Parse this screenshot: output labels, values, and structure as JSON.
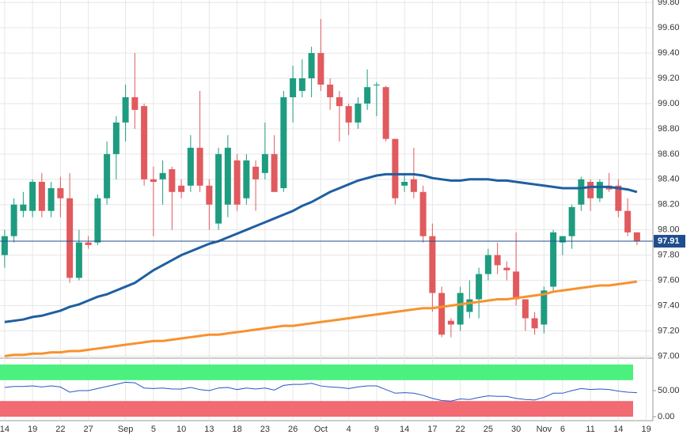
{
  "chart_data": [
    {
      "type": "candlestick",
      "categories": [
        "14",
        null,
        null,
        "19",
        null,
        null,
        "22",
        null,
        null,
        "27",
        null,
        null,
        null,
        "Sep",
        null,
        null,
        "5",
        null,
        null,
        "10",
        null,
        null,
        "13",
        null,
        null,
        "18",
        null,
        null,
        "23",
        null,
        null,
        "26",
        null,
        null,
        "Oct",
        null,
        null,
        "4",
        null,
        null,
        "9",
        null,
        null,
        "14",
        null,
        null,
        "17",
        null,
        null,
        "22",
        null,
        null,
        "25",
        null,
        null,
        "30",
        null,
        null,
        "Nov",
        null,
        "6",
        null,
        null,
        "11",
        null,
        null,
        "14",
        null,
        null,
        "19"
      ],
      "open": [
        97.8,
        97.95,
        98.15,
        98.15,
        98.38,
        98.15,
        98.33,
        98.25,
        97.62,
        97.9,
        97.9,
        98.25,
        98.6,
        98.85,
        99.05,
        98.98,
        98.4,
        98.4,
        98.48,
        98.35,
        98.35,
        98.65,
        98.35,
        98.05,
        98.2,
        98.55,
        98.25,
        98.5,
        98.45,
        98.6,
        98.33,
        99.05,
        99.1,
        99.2,
        99.4,
        99.15,
        99.05,
        98.98,
        98.85,
        99.0,
        99.15,
        99.13,
        98.72,
        98.35,
        98.4,
        98.3,
        97.95,
        97.5,
        97.28,
        97.25,
        97.35,
        97.45,
        97.65,
        97.8,
        97.7,
        97.67,
        97.45,
        97.3,
        97.25,
        97.55,
        97.9,
        97.95,
        98.2,
        98.38,
        98.25,
        98.35,
        98.35,
        98.15,
        97.98,
        null
      ],
      "high": [
        98.0,
        98.25,
        98.3,
        98.4,
        98.45,
        98.38,
        98.42,
        98.45,
        98.0,
        97.95,
        98.28,
        98.7,
        98.9,
        99.15,
        99.4,
        99.0,
        98.5,
        98.55,
        98.5,
        98.4,
        98.75,
        99.1,
        98.4,
        98.65,
        98.75,
        98.6,
        98.6,
        98.55,
        98.85,
        98.75,
        99.1,
        99.3,
        99.35,
        99.45,
        99.67,
        99.2,
        99.1,
        99.0,
        99.05,
        99.27,
        99.17,
        99.14,
        98.72,
        98.45,
        98.65,
        98.35,
        98.05,
        97.55,
        97.3,
        97.55,
        97.6,
        97.7,
        97.85,
        97.9,
        97.75,
        97.98,
        97.45,
        97.35,
        97.55,
        98.0,
        97.95,
        98.2,
        98.42,
        98.4,
        98.4,
        98.45,
        98.4,
        98.25,
        97.98,
        null
      ],
      "low": [
        97.7,
        97.9,
        98.1,
        98.1,
        98.1,
        98.1,
        98.1,
        97.58,
        97.6,
        97.85,
        97.88,
        98.2,
        98.4,
        98.7,
        98.8,
        98.35,
        97.95,
        98.2,
        98.0,
        98.25,
        98.3,
        98.3,
        98.0,
        98.0,
        98.1,
        98.15,
        98.2,
        98.15,
        98.4,
        98.3,
        98.3,
        98.85,
        99.05,
        99.05,
        99.1,
        98.95,
        98.7,
        98.75,
        98.8,
        98.95,
        98.9,
        98.7,
        98.2,
        98.3,
        98.25,
        97.9,
        97.35,
        97.15,
        97.15,
        97.2,
        97.3,
        97.3,
        97.6,
        97.65,
        97.6,
        97.4,
        97.2,
        97.17,
        97.18,
        97.5,
        97.8,
        97.85,
        98.15,
        98.15,
        98.22,
        98.3,
        98.1,
        97.95,
        97.88,
        null
      ],
      "close": [
        97.95,
        98.2,
        98.2,
        98.38,
        98.15,
        98.33,
        98.25,
        97.62,
        97.9,
        97.88,
        98.25,
        98.6,
        98.85,
        99.05,
        98.95,
        98.4,
        98.38,
        98.45,
        98.3,
        98.3,
        98.65,
        98.35,
        98.2,
        98.6,
        98.65,
        98.2,
        98.55,
        98.4,
        98.6,
        98.3,
        99.05,
        99.2,
        99.2,
        99.4,
        99.15,
        99.05,
        98.98,
        98.85,
        99.0,
        99.13,
        99.15,
        98.72,
        98.25,
        98.38,
        98.3,
        97.95,
        97.5,
        97.17,
        97.25,
        97.5,
        97.45,
        97.65,
        97.8,
        97.72,
        97.68,
        97.45,
        97.3,
        97.22,
        97.52,
        97.98,
        97.95,
        98.18,
        98.4,
        98.25,
        98.38,
        98.32,
        98.15,
        97.98,
        97.91,
        null
      ],
      "up_color": "#1e9c80",
      "down_color": "#e15a5e",
      "series": [
        {
          "color": "#1f5fa0",
          "values": [
            97.27,
            97.28,
            97.29,
            97.31,
            97.32,
            97.34,
            97.36,
            97.39,
            97.41,
            97.44,
            97.47,
            97.49,
            97.52,
            97.55,
            97.58,
            97.63,
            97.68,
            97.72,
            97.76,
            97.8,
            97.83,
            97.86,
            97.89,
            97.91,
            97.94,
            97.97,
            98.0,
            98.03,
            98.06,
            98.09,
            98.12,
            98.15,
            98.19,
            98.22,
            98.26,
            98.3,
            98.33,
            98.36,
            98.39,
            98.41,
            98.43,
            98.44,
            98.44,
            98.44,
            98.44,
            98.43,
            98.41,
            98.4,
            98.39,
            98.39,
            98.4,
            98.4,
            98.4,
            98.39,
            98.39,
            98.38,
            98.37,
            98.36,
            98.35,
            98.34,
            98.33,
            98.33,
            98.33,
            98.34,
            98.34,
            98.34,
            98.33,
            98.32,
            98.3,
            null
          ]
        },
        {
          "color": "#f7922e",
          "values": [
            97.0,
            97.01,
            97.01,
            97.02,
            97.02,
            97.03,
            97.03,
            97.04,
            97.04,
            97.05,
            97.06,
            97.07,
            97.08,
            97.09,
            97.1,
            97.11,
            97.12,
            97.12,
            97.13,
            97.14,
            97.15,
            97.16,
            97.17,
            97.17,
            97.18,
            97.19,
            97.2,
            97.21,
            97.22,
            97.23,
            97.24,
            97.24,
            97.25,
            97.26,
            97.27,
            97.28,
            97.29,
            97.3,
            97.31,
            97.32,
            97.33,
            97.34,
            97.35,
            97.36,
            97.37,
            97.38,
            97.38,
            97.39,
            97.4,
            97.41,
            97.42,
            97.43,
            97.44,
            97.45,
            97.45,
            97.46,
            97.47,
            97.48,
            97.49,
            97.51,
            97.52,
            97.53,
            97.54,
            97.55,
            97.56,
            97.56,
            97.57,
            97.58,
            97.59,
            null
          ]
        }
      ],
      "last_price": 97.91,
      "last_price_color": "#1f4e8c",
      "ylim": [
        96.99,
        99.82
      ],
      "yticks": [
        {
          "value": 97,
          "label": "97.00"
        },
        {
          "value": 97.2,
          "label": "97.20"
        },
        {
          "value": 97.4,
          "label": "97.40"
        },
        {
          "value": 97.6,
          "label": "97.60"
        },
        {
          "value": 97.8,
          "label": "97.80"
        },
        {
          "value": 98,
          "label": "98.00"
        },
        {
          "value": 98.2,
          "label": "98.20"
        },
        {
          "value": 98.4,
          "label": "98.40"
        },
        {
          "value": 98.6,
          "label": "98.60"
        },
        {
          "value": 98.8,
          "label": "98.80"
        },
        {
          "value": 99,
          "label": "99.00"
        },
        {
          "value": 99.2,
          "label": "99.20"
        },
        {
          "value": 99.4,
          "label": "99.40"
        },
        {
          "value": 99.6,
          "label": "99.60"
        },
        {
          "value": 99.8,
          "label": "99.80"
        }
      ],
      "grid": true
    },
    {
      "type": "line",
      "series": [
        {
          "color": "#2a55c8",
          "values": [
            56,
            58,
            58,
            59,
            57,
            59,
            57,
            47,
            50,
            50,
            54,
            58,
            62,
            66,
            65,
            55,
            54,
            55,
            53,
            53,
            56,
            52,
            50,
            55,
            56,
            52,
            55,
            53,
            55,
            51,
            60,
            62,
            62,
            64,
            59,
            57,
            56,
            54,
            57,
            59,
            59,
            52,
            45,
            46,
            45,
            41,
            35,
            31,
            30,
            34,
            33,
            37,
            40,
            39,
            39,
            35,
            33,
            32,
            37,
            45,
            45,
            50,
            54,
            52,
            53,
            52,
            49,
            47,
            46,
            null
          ]
        }
      ],
      "bands": [
        {
          "from": 70,
          "to": 100,
          "color": "#4cf07e"
        },
        {
          "from": 0,
          "to": 30,
          "color": "#f26a72"
        }
      ],
      "ylim": [
        0,
        100
      ],
      "yticks": [
        {
          "value": 0,
          "label": "0.00"
        },
        {
          "value": 50,
          "label": "50.00"
        }
      ]
    }
  ]
}
